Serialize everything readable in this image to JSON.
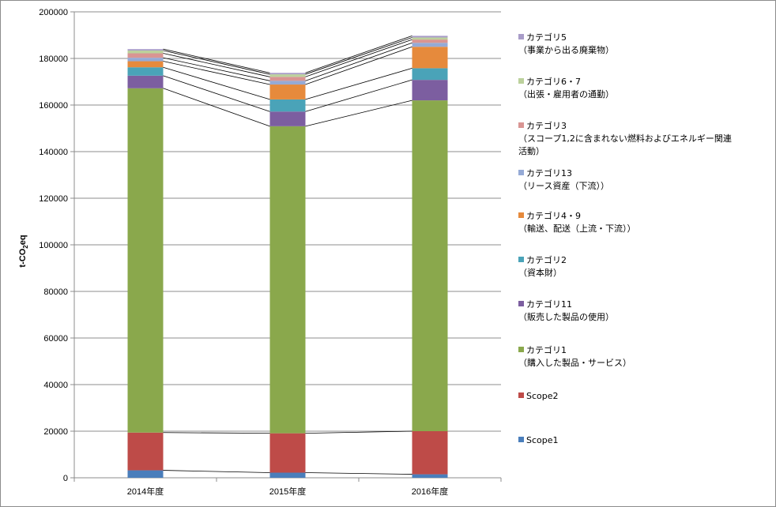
{
  "chart_data": {
    "type": "bar",
    "stacked": true,
    "categories": [
      "2014年度",
      "2015年度",
      "2016年度"
    ],
    "ylabel": "t-CO2eq",
    "ylim": [
      0,
      200000
    ],
    "yticks": [
      "0",
      "20000",
      "40000",
      "60000",
      "80000",
      "100000",
      "120000",
      "140000",
      "160000",
      "180000",
      "200000"
    ],
    "grid": true,
    "legend_position": "right",
    "series": [
      {
        "name": "Scope1",
        "color": "#4a7ebb",
        "values": [
          3200,
          2200,
          1500
        ]
      },
      {
        "name": "Scope2",
        "color": "#be4b48",
        "values": [
          16200,
          16900,
          18500
        ]
      },
      {
        "name": "カテゴリ1（購入した製品・サービス）",
        "color": "#8aa84c",
        "values": [
          147800,
          131800,
          142000
        ]
      },
      {
        "name": "カテゴリ11（販売した製品の使用）",
        "color": "#7c5ea0",
        "values": [
          5400,
          6300,
          8800
        ]
      },
      {
        "name": "カテゴリ2（資本財）",
        "color": "#4aa3b8",
        "values": [
          3600,
          5200,
          5000
        ]
      },
      {
        "name": "カテゴリ4・9（輸送、配送（上流・下流））",
        "color": "#e68a3c",
        "values": [
          2600,
          6400,
          9200
        ]
      },
      {
        "name": "カテゴリ13（リース資産（下流））",
        "color": "#95aad6",
        "values": [
          1500,
          1600,
          1700
        ]
      },
      {
        "name": "カテゴリ3（スコープ1,2に含まれない燃料およびエネルギー関連活動）",
        "color": "#d99593",
        "values": [
          1900,
          1700,
          1400
        ]
      },
      {
        "name": "カテゴリ6・7（出張・雇用者の通勤）",
        "color": "#bcd19c",
        "values": [
          1200,
          1100,
          900
        ]
      },
      {
        "name": "カテゴリ5（事業から出る廃棄物）",
        "color": "#a89cc8",
        "values": [
          600,
          600,
          700
        ]
      }
    ]
  },
  "legend": [
    {
      "line1": "カテゴリ5",
      "line2": "（事業から出る廃棄物）",
      "line3": "",
      "color": "#a89cc8"
    },
    {
      "line1": "カテゴリ6・7",
      "line2": "（出張・雇用者の通勤）",
      "line3": "",
      "color": "#bcd19c"
    },
    {
      "line1": "カテゴリ3",
      "line2": "（スコープ1,2に含まれない燃料およびエネルギー関連",
      "line3": "活動）",
      "color": "#d99593"
    },
    {
      "line1": "カテゴリ13",
      "line2": "（リース資産（下流））",
      "line3": "",
      "color": "#95aad6"
    },
    {
      "line1": "カテゴリ4・9",
      "line2": "（輸送、配送（上流・下流））",
      "line3": "",
      "color": "#e68a3c"
    },
    {
      "line1": "カテゴリ2",
      "line2": "（資本財）",
      "line3": "",
      "color": "#4aa3b8"
    },
    {
      "line1": "カテゴリ11",
      "line2": "（販売した製品の使用）",
      "line3": "",
      "color": "#7c5ea0"
    },
    {
      "line1": "カテゴリ1",
      "line2": "（購入した製品・サービス）",
      "line3": "",
      "color": "#8aa84c"
    },
    {
      "line1": "Scope2",
      "line2": "",
      "line3": "",
      "color": "#be4b48"
    },
    {
      "line1": "Scope1",
      "line2": "",
      "line3": "",
      "color": "#4a7ebb"
    }
  ]
}
